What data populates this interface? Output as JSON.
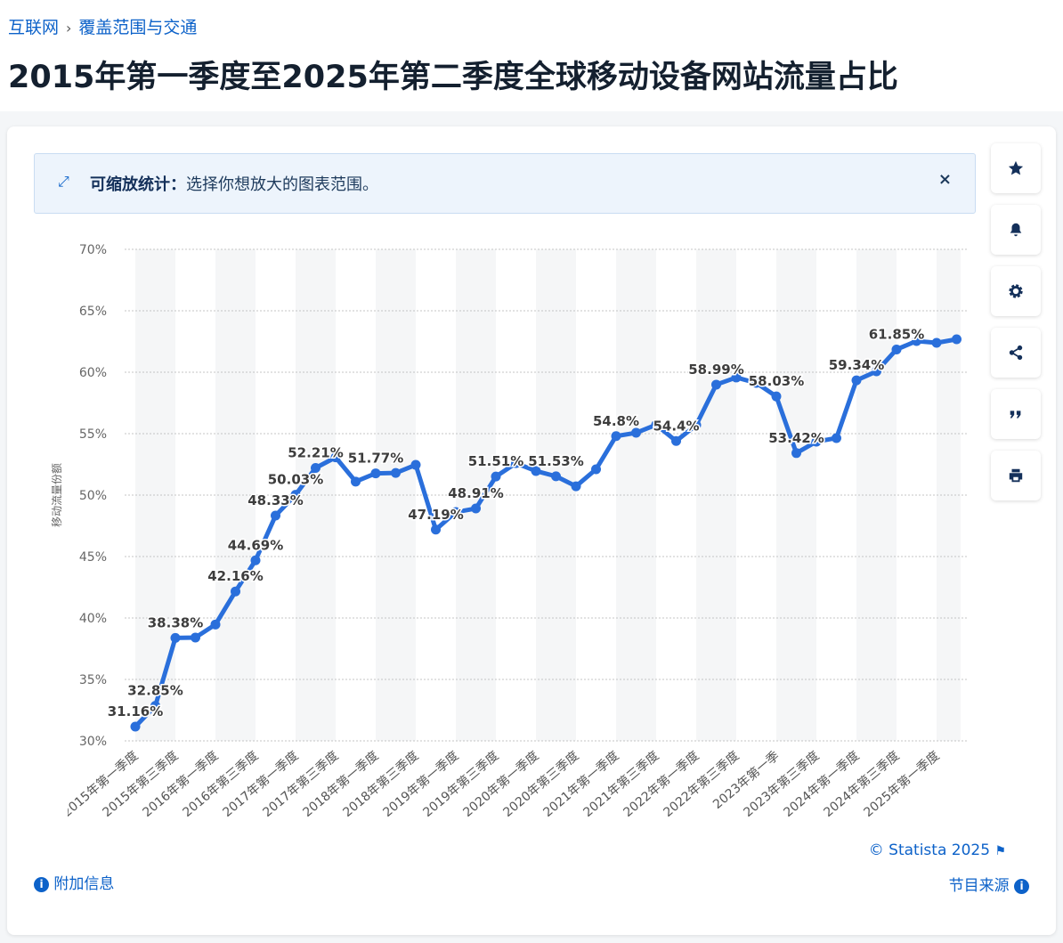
{
  "breadcrumb": [
    "互联网",
    "覆盖范围与交通"
  ],
  "banner": {
    "label": "可缩放统计：",
    "text": "选择你想放大的图表范围。"
  },
  "footer": {
    "copyright": "© Statista 2025",
    "info": "附加信息",
    "source": "节目来源"
  },
  "chart_data": {
    "type": "line",
    "title": "2015年第一季度至2025年第二季度全球移动设备网站流量占比",
    "y_label": "移动流量份额",
    "color": "#2a6fdb",
    "grid": true,
    "categories": [
      "2015年第一季度",
      null,
      "2015年第三季度",
      null,
      "2016年第一季度",
      null,
      "2016年第三季度",
      null,
      "2017年第一季度",
      null,
      "2017年第三季度",
      null,
      "2018年第一季度",
      null,
      "2018年第三季度",
      null,
      "2019年第一季度",
      null,
      "2019年第三季度",
      null,
      "2020年第一季度",
      null,
      "2020年第三季度",
      null,
      "2021年第一季度",
      null,
      "2021年第三季度",
      null,
      "2022年第一季度",
      null,
      "2022年第三季度",
      null,
      "2023年第一季",
      null,
      "2023年第三季度",
      null,
      "2024年第一季度",
      null,
      "2024年第三季度",
      null,
      "2025年第一季度",
      null
    ],
    "values": [
      31.16,
      32.85,
      38.38,
      38.41,
      39.47,
      42.16,
      44.69,
      48.33,
      50.03,
      52.21,
      53.07,
      51.1,
      51.77,
      51.8,
      52.46,
      47.19,
      48.62,
      48.91,
      51.51,
      52.6,
      51.96,
      51.53,
      50.72,
      52.1,
      54.8,
      55.07,
      55.72,
      54.4,
      55.7,
      58.99,
      59.57,
      59.13,
      58.03,
      53.42,
      54.35,
      54.64,
      59.34,
      60.07,
      61.85,
      62.54,
      62.39,
      62.68
    ],
    "value_labels": [
      "31.16%",
      "32.85%",
      "38.38%",
      null,
      null,
      "42.16%",
      "44.69%",
      "48.33%",
      "50.03%",
      "52.21%",
      null,
      null,
      "51.77%",
      null,
      null,
      "47.19%",
      null,
      "48.91%",
      "51.51%",
      null,
      null,
      "51.53%",
      null,
      null,
      "54.8%",
      null,
      null,
      "54.4%",
      null,
      "58.99%",
      null,
      null,
      "58.03%",
      "53.42%",
      null,
      null,
      "59.34%",
      null,
      "61.85%",
      null,
      null,
      null
    ],
    "ylim": [
      30,
      70
    ],
    "yticks": [
      {
        "value": 30,
        "label": "30%"
      },
      {
        "value": 35,
        "label": "35%"
      },
      {
        "value": 40,
        "label": "40%"
      },
      {
        "value": 45,
        "label": "45%"
      },
      {
        "value": 50,
        "label": "50%"
      },
      {
        "value": 55,
        "label": "55%"
      },
      {
        "value": 60,
        "label": "60%"
      },
      {
        "value": 65,
        "label": "65%"
      },
      {
        "value": 70,
        "label": "70%"
      }
    ]
  }
}
